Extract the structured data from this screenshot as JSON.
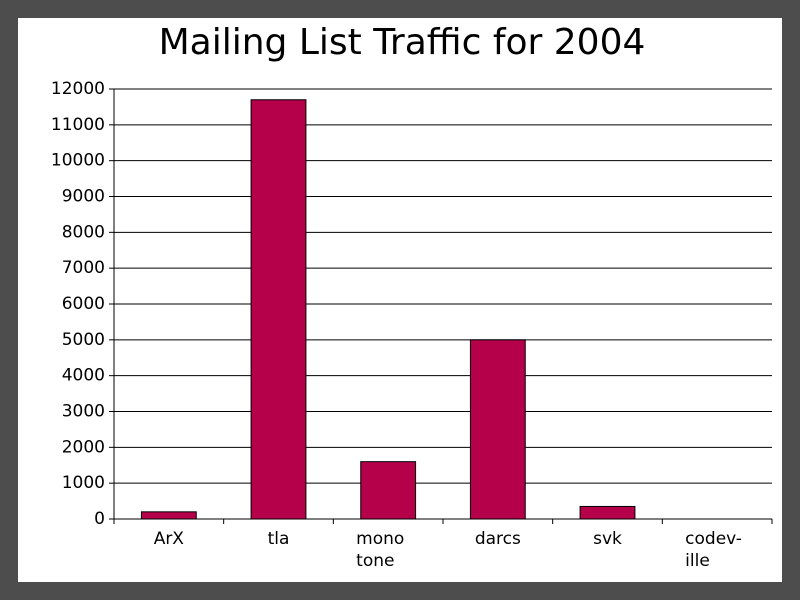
{
  "chart_data": {
    "type": "bar",
    "title": "Mailing List Traffic for 2004",
    "categories": [
      "ArX",
      "tla",
      "mono\ntone",
      "darcs",
      "svk",
      "codev-\nille"
    ],
    "values": [
      200,
      11700,
      1600,
      5000,
      350,
      0
    ],
    "color": "#b5004a",
    "ylim": [
      0,
      12000
    ],
    "yticks": [
      0,
      1000,
      2000,
      3000,
      4000,
      5000,
      6000,
      7000,
      8000,
      9000,
      10000,
      11000,
      12000
    ],
    "grid": true
  }
}
